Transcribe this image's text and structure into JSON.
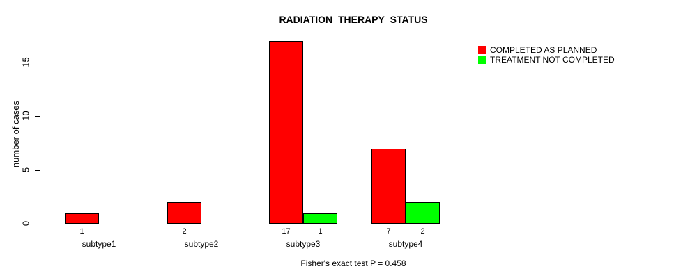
{
  "chart_data": {
    "type": "bar",
    "title": "RADIATION_THERAPY_STATUS",
    "ylabel": "number of cases",
    "xlabel": "",
    "categories": [
      "subtype1",
      "subtype2",
      "subtype3",
      "subtype4"
    ],
    "series": [
      {
        "name": "COMPLETED AS PLANNED",
        "color": "#FF0000",
        "values": [
          1,
          2,
          17,
          7
        ]
      },
      {
        "name": "TREATMENT NOT COMPLETED",
        "color": "#00FF00",
        "values": [
          0,
          0,
          1,
          2
        ]
      }
    ],
    "bar_value_labels": [
      [
        "1",
        ""
      ],
      [
        "2",
        ""
      ],
      [
        "17",
        "1"
      ],
      [
        "7",
        "2"
      ]
    ],
    "yticks": [
      0,
      5,
      10,
      15
    ],
    "ylim": [
      0,
      17
    ],
    "grid": false,
    "legend_position": "top-right",
    "footnote": "Fisher's exact test P = 0.458",
    "axis_color": "#000000",
    "background_color": "#FFFFFF"
  }
}
